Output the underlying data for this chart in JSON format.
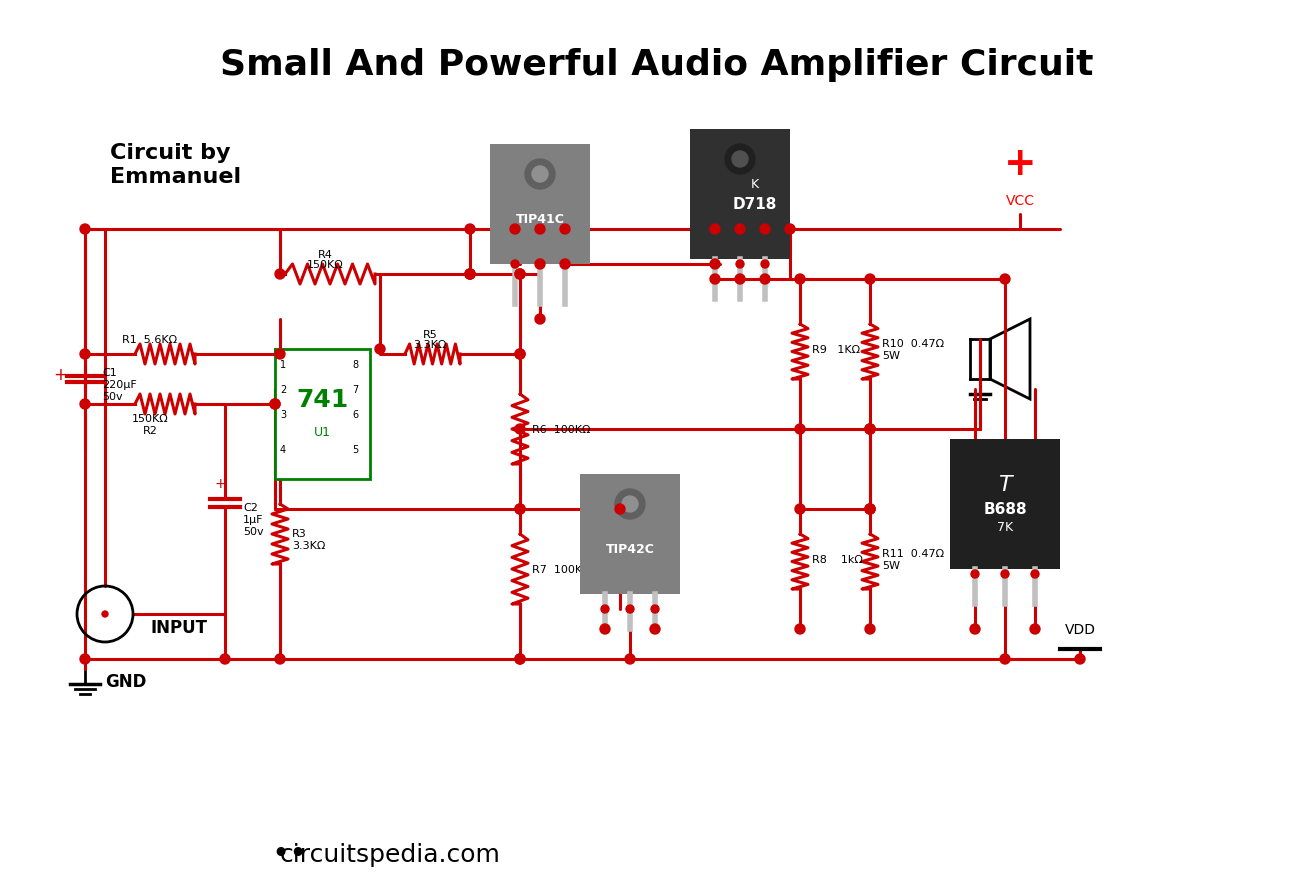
{
  "title": "Small And Powerful Audio Amplifier Circuit",
  "title_fontsize": 26,
  "subtitle": "Circuit by\nEmmanuel",
  "subtitle_fontsize": 16,
  "circuit_color": "#cc0000",
  "wire_lw": 2.2,
  "background": "#ffffff",
  "footer_text": "circuitspedia.com",
  "footer_fontsize": 18,
  "component_labels": {
    "C1": "C1\n220μF\n50v",
    "R1": "R1  5.6KΩ",
    "R2": "150KΩ\nR2",
    "R3": "R3\n3.3KΩ",
    "R4": "R4\n150KΩ",
    "R5": "R5\n3.3KΩ",
    "R6": "R6  100KΩ",
    "R7": "R7  100KΩ",
    "R8": "R8    1kΩ",
    "R9": "R9   1KΩ",
    "R10": "R10  0.47Ω\n5W",
    "R11": "R11  0.47Ω\n5W",
    "C2": "C2\n1μF\n50v",
    "U1": "U1",
    "IC741": "741",
    "TIP41C": "TIP41C",
    "TIP42C": "TIP42C",
    "D718": "K\nD718",
    "B688": "B688\n7K",
    "GND": "GND",
    "INPUT": "INPUT",
    "VCC": "VCC",
    "VDD": "VDD"
  }
}
